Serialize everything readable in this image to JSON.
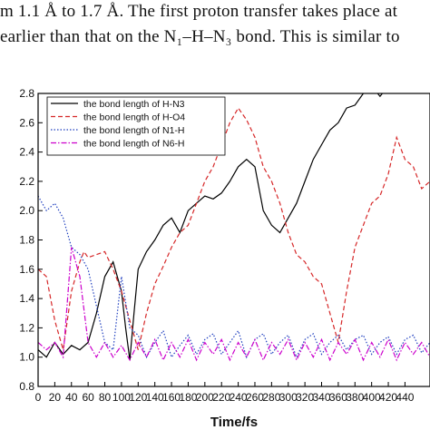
{
  "caption": {
    "line1": "m 1.1 Å to 1.7 Å. The first proton transfer takes place at",
    "line2": "earlier than that on the N₁–H–N₃ bond. This is similar to"
  },
  "chart_data": {
    "type": "line",
    "title": "",
    "xlabel": "Time/fs",
    "ylabel": "",
    "xlim": [
      0,
      470
    ],
    "ylim": [
      0.8,
      2.8
    ],
    "xticks": [
      0,
      20,
      40,
      60,
      80,
      100,
      120,
      140,
      160,
      180,
      200,
      220,
      240,
      260,
      280,
      300,
      320,
      340,
      360,
      380,
      400,
      420,
      440
    ],
    "yticks": [
      0.8,
      1.0,
      1.2,
      1.4,
      1.6,
      1.8,
      2.0,
      2.2,
      2.4,
      2.6,
      2.8
    ],
    "legend_position": "top-left",
    "series": [
      {
        "name": "the bond length of H-N3",
        "color": "#000000",
        "style": "solid",
        "x": [
          0,
          10,
          20,
          30,
          40,
          50,
          60,
          70,
          80,
          90,
          100,
          105,
          110,
          115,
          120,
          130,
          140,
          150,
          160,
          170,
          180,
          190,
          200,
          210,
          220,
          230,
          240,
          250,
          260,
          270,
          280,
          290,
          300,
          310,
          320,
          330,
          340,
          350,
          360,
          370,
          380,
          390,
          400,
          410,
          420,
          425
        ],
        "y": [
          1.05,
          1.0,
          1.1,
          1.02,
          1.08,
          1.05,
          1.1,
          1.3,
          1.55,
          1.65,
          1.45,
          1.2,
          0.98,
          1.3,
          1.6,
          1.72,
          1.8,
          1.9,
          1.95,
          1.85,
          2.0,
          2.05,
          2.1,
          2.08,
          2.12,
          2.2,
          2.3,
          2.35,
          2.3,
          2.0,
          1.9,
          1.85,
          1.95,
          2.05,
          2.2,
          2.35,
          2.45,
          2.55,
          2.6,
          2.7,
          2.72,
          2.8,
          2.85,
          2.78,
          2.85,
          2.9
        ]
      },
      {
        "name": "the bond length of H-O4",
        "color": "#d62728",
        "style": "dashed",
        "x": [
          0,
          10,
          20,
          30,
          40,
          50,
          55,
          60,
          70,
          80,
          90,
          100,
          110,
          120,
          130,
          140,
          150,
          160,
          170,
          180,
          190,
          200,
          210,
          220,
          230,
          240,
          250,
          260,
          270,
          280,
          290,
          300,
          310,
          320,
          330,
          340,
          350,
          360,
          370,
          380,
          390,
          400,
          410,
          420,
          430,
          440,
          450,
          460,
          470
        ],
        "y": [
          1.6,
          1.55,
          1.25,
          1.05,
          1.45,
          1.65,
          1.72,
          1.68,
          1.7,
          1.72,
          1.6,
          1.45,
          1.25,
          1.05,
          1.3,
          1.5,
          1.62,
          1.75,
          1.85,
          1.9,
          2.05,
          2.2,
          2.3,
          2.45,
          2.6,
          2.7,
          2.62,
          2.5,
          2.3,
          2.2,
          2.05,
          1.85,
          1.7,
          1.65,
          1.55,
          1.5,
          1.3,
          1.1,
          1.45,
          1.75,
          1.9,
          2.05,
          2.1,
          2.25,
          2.5,
          2.35,
          2.3,
          2.15,
          2.2
        ]
      },
      {
        "name": "the bond length of N1-H",
        "color": "#1f3fbf",
        "style": "dotted",
        "x": [
          0,
          10,
          20,
          30,
          40,
          50,
          60,
          70,
          80,
          90,
          100,
          110,
          120,
          130,
          140,
          150,
          160,
          170,
          180,
          190,
          200,
          210,
          220,
          230,
          240,
          250,
          260,
          270,
          280,
          290,
          300,
          310,
          320,
          330,
          340,
          350,
          360,
          370,
          380,
          390,
          400,
          410,
          420,
          430,
          440,
          450,
          460,
          470
        ],
        "y": [
          2.1,
          2.0,
          2.05,
          1.95,
          1.75,
          1.7,
          1.6,
          1.35,
          1.1,
          1.05,
          1.55,
          1.2,
          1.15,
          1.0,
          1.1,
          1.18,
          1.0,
          1.08,
          1.15,
          1.02,
          1.12,
          1.16,
          1.02,
          1.1,
          1.18,
          1.0,
          1.12,
          1.16,
          1.02,
          1.1,
          1.15,
          1.0,
          1.12,
          1.16,
          1.02,
          1.1,
          1.15,
          1.05,
          1.12,
          1.15,
          1.02,
          1.1,
          1.14,
          1.02,
          1.12,
          1.15,
          1.03,
          1.1
        ]
      },
      {
        "name": "the bond length of N6-H",
        "color": "#cc00cc",
        "style": "dashdot",
        "x": [
          0,
          10,
          20,
          30,
          40,
          50,
          60,
          70,
          80,
          90,
          100,
          110,
          120,
          130,
          140,
          150,
          160,
          170,
          180,
          190,
          200,
          210,
          220,
          230,
          240,
          250,
          260,
          270,
          280,
          290,
          300,
          310,
          320,
          330,
          340,
          350,
          360,
          370,
          380,
          390,
          400,
          410,
          420,
          430,
          440,
          450,
          460,
          470
        ],
        "y": [
          1.1,
          1.05,
          1.1,
          1.0,
          1.75,
          1.55,
          1.1,
          1.0,
          1.1,
          1.0,
          1.08,
          0.98,
          1.1,
          1.0,
          1.12,
          0.98,
          1.1,
          1.0,
          1.12,
          0.98,
          1.1,
          1.02,
          1.12,
          0.98,
          1.1,
          1.0,
          1.12,
          0.98,
          1.1,
          1.02,
          1.12,
          0.98,
          1.1,
          1.0,
          1.12,
          0.98,
          1.1,
          1.02,
          1.12,
          0.98,
          1.1,
          1.0,
          1.12,
          0.98,
          1.1,
          1.02,
          1.1,
          1.0
        ]
      }
    ]
  }
}
